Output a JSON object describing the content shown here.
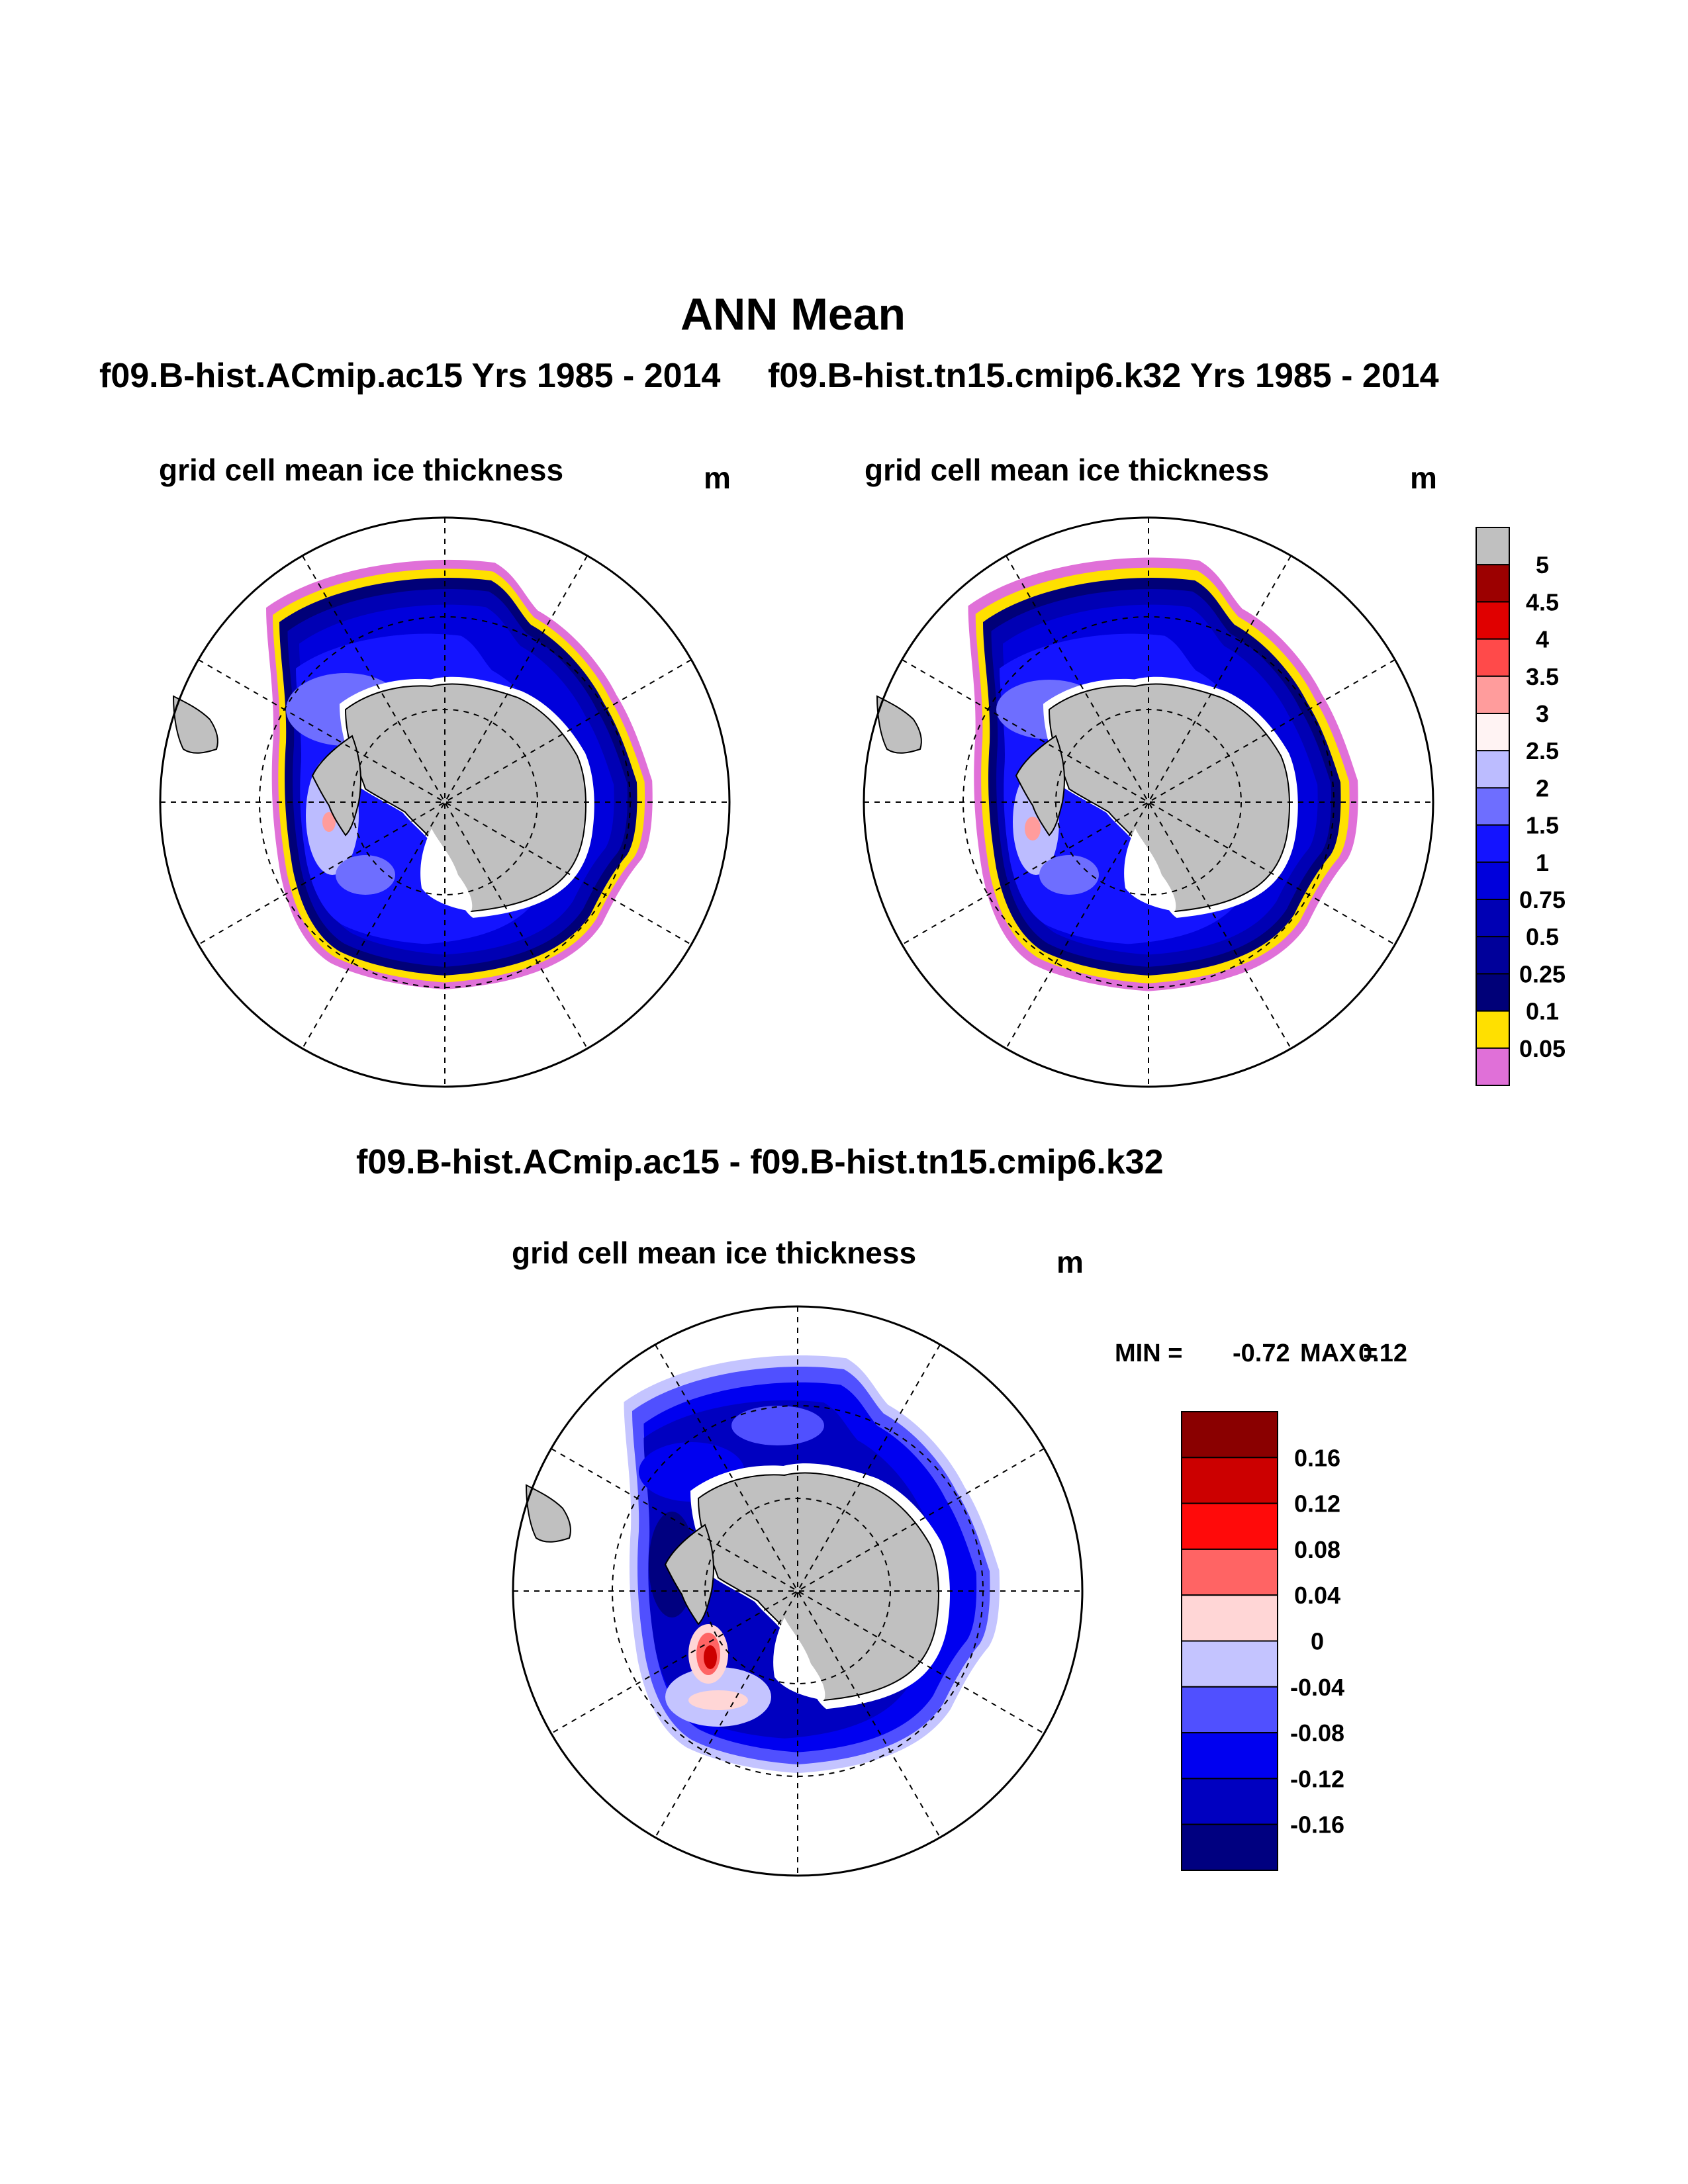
{
  "title": "ANN Mean",
  "panels": [
    {
      "case_label": "f09.B-hist.ACmip.ac15  Yrs 1985 - 2014",
      "field": "grid cell mean ice thickness",
      "units": "m"
    },
    {
      "case_label": "f09.B-hist.tn15.cmip6.k32  Yrs 1985 - 2014",
      "field": "grid cell mean ice thickness",
      "units": "m"
    }
  ],
  "diff_panel": {
    "case_label": "f09.B-hist.ACmip.ac15 - f09.B-hist.tn15.cmip6.k32",
    "field": "grid cell mean ice thickness",
    "units": "m",
    "min_label": "MIN =",
    "min_value": "-0.72",
    "max_label": "MAX =",
    "max_value": "0.12"
  },
  "colorbar_thickness": {
    "labels": [
      "5",
      "4.5",
      "4",
      "3.5",
      "3",
      "2.5",
      "2",
      "1.5",
      "1",
      "0.75",
      "0.5",
      "0.25",
      "0.1",
      "0.05"
    ],
    "colors": [
      "#c0c0c0",
      "#9c0000",
      "#e00000",
      "#ff4a4a",
      "#ff9c9c",
      "#fff3f3",
      "#bcbcff",
      "#6e6eff",
      "#1414ff",
      "#0000dc",
      "#0000b4",
      "#00009a",
      "#000078",
      "#ffe000",
      "#e070d8"
    ]
  },
  "colorbar_diff": {
    "labels": [
      "0.16",
      "0.12",
      "0.08",
      "0.04",
      "0",
      "-0.04",
      "-0.08",
      "-0.12",
      "-0.16"
    ],
    "colors": [
      "#8a0000",
      "#cc0000",
      "#ff0a0a",
      "#ff6464",
      "#ffd6d6",
      "#c4c4ff",
      "#5050ff",
      "#0000f0",
      "#0000c0",
      "#000080"
    ]
  },
  "colors": {
    "land": "#c0c0c0",
    "background": "#ffffff"
  }
}
